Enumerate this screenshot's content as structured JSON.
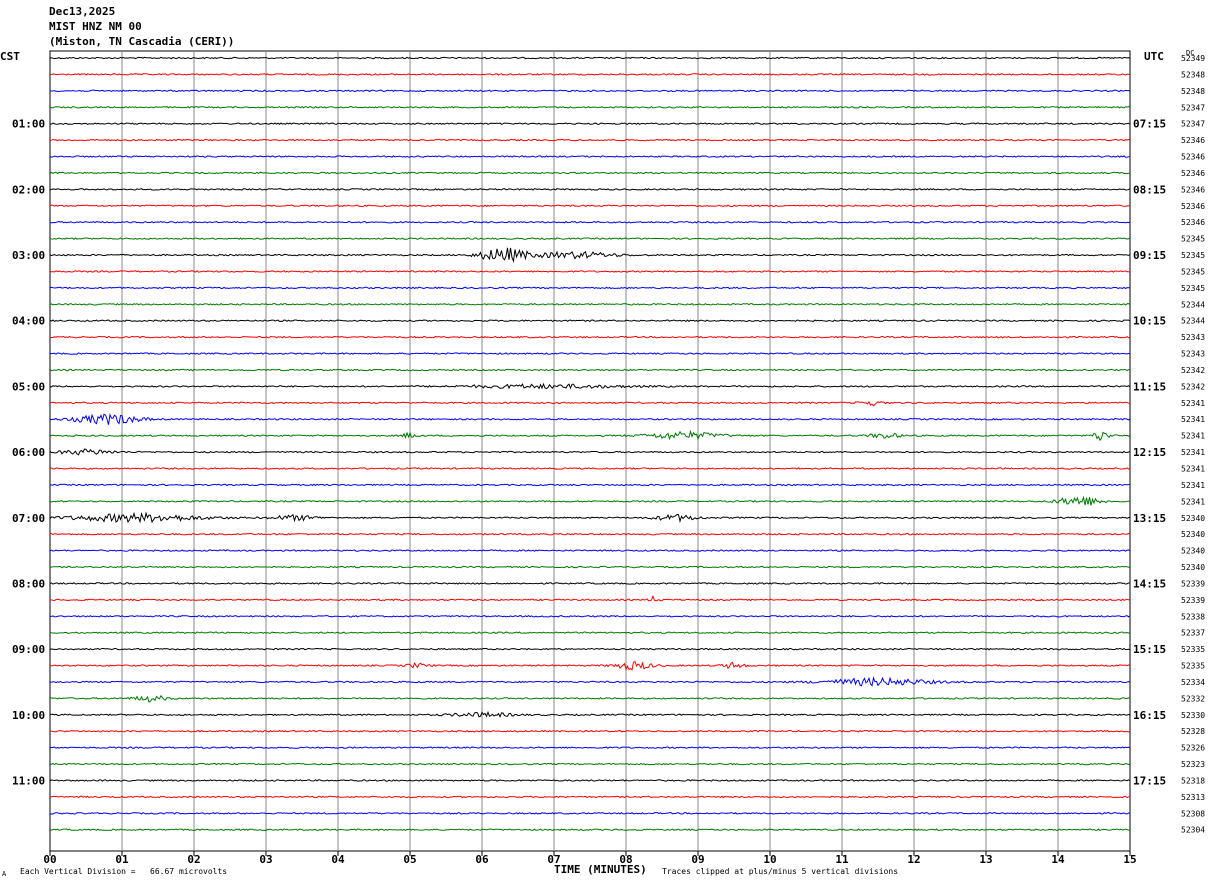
{
  "header": {
    "date": "Dec13,2025",
    "station": "MIST HNZ NM 00",
    "location": "(Miston, TN Cascadia (CERI))"
  },
  "axis_labels": {
    "left_timezone": "CST",
    "right_timezone": "UTC",
    "right_column": "DC"
  },
  "footer": {
    "scale_note": "Each Vertical Division =   66.67 microvolts",
    "xlabel": "TIME (MINUTES)",
    "clip_note": "Traces clipped at plus/minus 5 vertical divisions",
    "corner_mark": "A"
  },
  "colors": {
    "trace_cycle": [
      "#000000",
      "#ff0000",
      "#0000ff",
      "#007a00"
    ],
    "grid": "#888888"
  },
  "chart_data": {
    "type": "line",
    "subtype": "helicorder",
    "title": "MIST HNZ NM 00",
    "xlabel": "TIME (MINUTES)",
    "xlim": [
      0,
      15
    ],
    "x_ticks": [
      "00",
      "01",
      "02",
      "03",
      "04",
      "05",
      "06",
      "07",
      "08",
      "09",
      "10",
      "11",
      "12",
      "13",
      "14",
      "15"
    ],
    "left_time_labels": [
      "01:00",
      "02:00",
      "03:00",
      "04:00",
      "05:00",
      "06:00",
      "07:00",
      "08:00",
      "09:00",
      "10:00",
      "11:00"
    ],
    "right_time_labels": [
      "07:15",
      "08:15",
      "09:15",
      "10:15",
      "11:15",
      "12:15",
      "13:15",
      "14:15",
      "15:15",
      "16:15",
      "17:15"
    ],
    "dc_offsets": [
      "52349",
      "52348",
      "52348",
      "52347",
      "52347",
      "52346",
      "52346",
      "52346",
      "52346",
      "52346",
      "52346",
      "52345",
      "52345",
      "52345",
      "52345",
      "52344",
      "52344",
      "52343",
      "52343",
      "52342",
      "52342",
      "52341",
      "52341",
      "52341",
      "52341",
      "52341",
      "52341",
      "52341",
      "52340",
      "52340",
      "52340",
      "52340",
      "52339",
      "52339",
      "52338",
      "52337",
      "52335",
      "52335",
      "52334",
      "52332",
      "52330",
      "52328",
      "52326",
      "52323",
      "52318",
      "52313",
      "52308",
      "52304"
    ],
    "events": [
      {
        "trace": 12,
        "center_min": 6.3,
        "width_min": 0.9,
        "amp": 7
      },
      {
        "trace": 12,
        "center_min": 7.3,
        "width_min": 1.5,
        "amp": 3
      },
      {
        "trace": 20,
        "center_min": 6.9,
        "width_min": 3.0,
        "amp": 1.8
      },
      {
        "trace": 21,
        "center_min": 11.4,
        "width_min": 0.4,
        "amp": 2.5
      },
      {
        "trace": 22,
        "center_min": 0.8,
        "width_min": 1.2,
        "amp": 5
      },
      {
        "trace": 23,
        "center_min": 5.0,
        "width_min": 0.3,
        "amp": 2.5
      },
      {
        "trace": 23,
        "center_min": 8.8,
        "width_min": 1.4,
        "amp": 3.5
      },
      {
        "trace": 23,
        "center_min": 11.6,
        "width_min": 0.6,
        "amp": 2.5
      },
      {
        "trace": 23,
        "center_min": 14.6,
        "width_min": 0.3,
        "amp": 5
      },
      {
        "trace": 24,
        "center_min": 0.5,
        "width_min": 1.0,
        "amp": 2.5
      },
      {
        "trace": 27,
        "center_min": 14.3,
        "width_min": 0.8,
        "amp": 5
      },
      {
        "trace": 28,
        "center_min": 1.2,
        "width_min": 2.4,
        "amp": 4
      },
      {
        "trace": 28,
        "center_min": 3.4,
        "width_min": 0.8,
        "amp": 2.5
      },
      {
        "trace": 28,
        "center_min": 8.7,
        "width_min": 0.8,
        "amp": 3
      },
      {
        "trace": 33,
        "center_min": 8.4,
        "width_min": 0.2,
        "amp": 3.5
      },
      {
        "trace": 37,
        "center_min": 8.1,
        "width_min": 0.7,
        "amp": 4
      },
      {
        "trace": 37,
        "center_min": 9.5,
        "width_min": 0.4,
        "amp": 3
      },
      {
        "trace": 37,
        "center_min": 5.1,
        "width_min": 0.4,
        "amp": 2
      },
      {
        "trace": 38,
        "center_min": 11.5,
        "width_min": 2.0,
        "amp": 3.5
      },
      {
        "trace": 39,
        "center_min": 1.4,
        "width_min": 0.6,
        "amp": 3
      },
      {
        "trace": 40,
        "center_min": 6.0,
        "width_min": 1.2,
        "amp": 2
      }
    ]
  }
}
